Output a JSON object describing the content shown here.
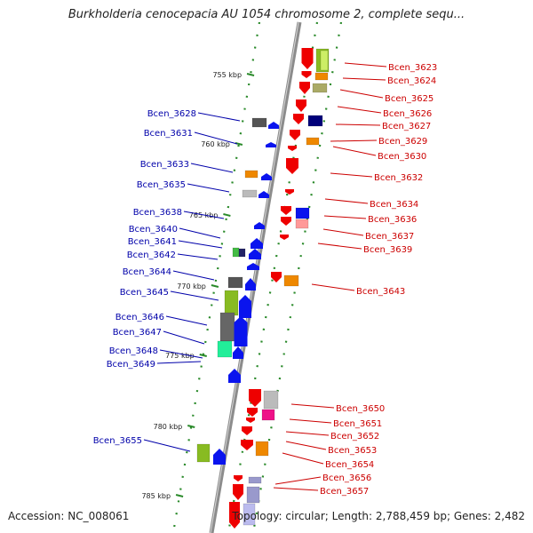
{
  "header": {
    "title": "Burkholderia cenocepacia AU 1054 chromosome 2, complete sequ...",
    "accession": "Accession: NC_008061",
    "topology": "Topology: circular; Length: 2,788,459 bp; Genes: 2,482"
  },
  "colors": {
    "forward_strand_labels": "#cc0000",
    "reverse_strand_labels": "#0000aa",
    "backbone": "#8c8c8c",
    "dotted_guide": "#2a8a2a"
  },
  "ticks": [
    "755 kbp",
    "760 kbp",
    "765 kbp",
    "770 kbp",
    "775 kbp",
    "780 kbp",
    "785 kbp"
  ],
  "genes_right": [
    "Bcen_3623",
    "Bcen_3624",
    "Bcen_3625",
    "Bcen_3626",
    "Bcen_3627",
    "Bcen_3629",
    "Bcen_3630",
    "Bcen_3632",
    "Bcen_3634",
    "Bcen_3636",
    "Bcen_3637",
    "Bcen_3639",
    "Bcen_3643",
    "Bcen_3650",
    "Bcen_3651",
    "Bcen_3652",
    "Bcen_3653",
    "Bcen_3654",
    "Bcen_3656",
    "Bcen_3657"
  ],
  "genes_left": [
    "Bcen_3628",
    "Bcen_3631",
    "Bcen_3633",
    "Bcen_3635",
    "Bcen_3638",
    "Bcen_3640",
    "Bcen_3641",
    "Bcen_3642",
    "Bcen_3644",
    "Bcen_3645",
    "Bcen_3646",
    "Bcen_3647",
    "Bcen_3648",
    "Bcen_3649",
    "Bcen_3655"
  ]
}
